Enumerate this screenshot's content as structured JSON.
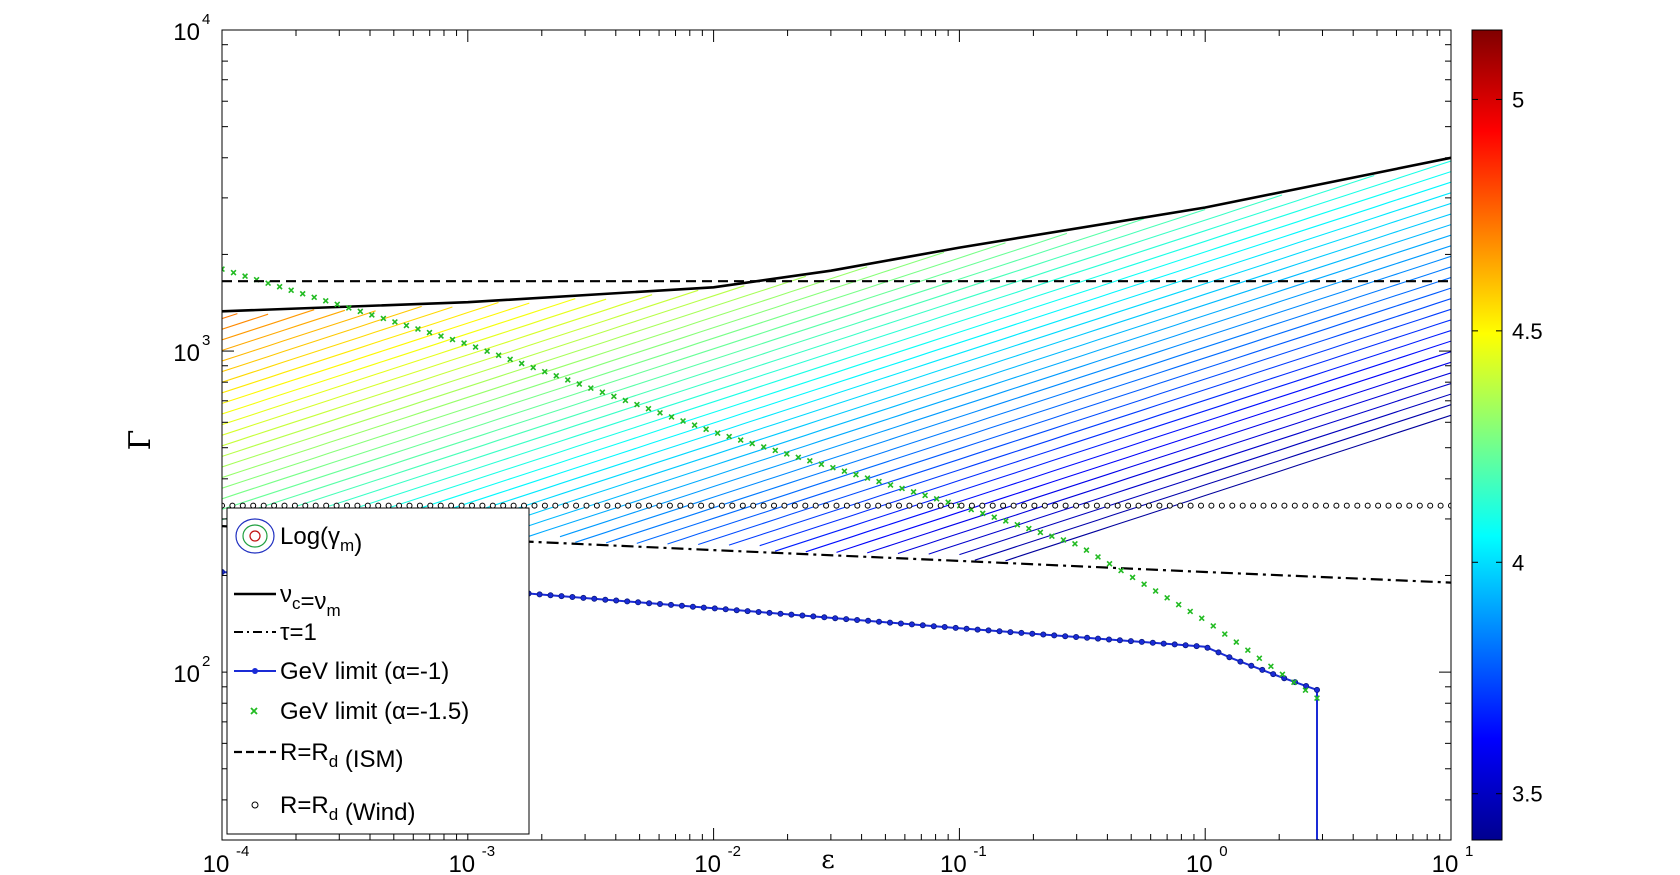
{
  "chart_data": {
    "type": "line",
    "xlabel": "ε",
    "ylabel": "Γ",
    "x_scale": "log",
    "y_scale": "log",
    "xlim": [
      0.0001,
      10
    ],
    "ylim": [
      30,
      10000
    ],
    "x_ticks": [
      {
        "value": 0.0001,
        "base": "10",
        "exp": "-4"
      },
      {
        "value": 0.001,
        "base": "10",
        "exp": "-3"
      },
      {
        "value": 0.01,
        "base": "10",
        "exp": "-2"
      },
      {
        "value": 0.1,
        "base": "10",
        "exp": "-1"
      },
      {
        "value": 1,
        "base": "10",
        "exp": "0"
      },
      {
        "value": 10,
        "base": "10",
        "exp": "1"
      }
    ],
    "y_ticks": [
      {
        "value": 100,
        "base": "10",
        "exp": "2"
      },
      {
        "value": 1000,
        "base": "10",
        "exp": "3"
      },
      {
        "value": 10000,
        "base": "10",
        "exp": "4"
      }
    ],
    "colorbar": {
      "range": [
        3.4,
        5.15
      ],
      "ticks": [
        {
          "value": 3.5,
          "label": "3.5"
        },
        {
          "value": 4,
          "label": "4"
        },
        {
          "value": 4.5,
          "label": "4.5"
        },
        {
          "value": 5,
          "label": "5"
        }
      ]
    },
    "contours": {
      "levels_min": 3.45,
      "levels_max": 5.1,
      "count": 62
    },
    "series": [
      {
        "name": "ν_c=ν_m",
        "style": "solid",
        "color": "#000000",
        "x": [
          0.0001,
          0.001,
          0.01,
          0.03,
          0.1,
          1,
          10
        ],
        "y": [
          1330,
          1420,
          1580,
          1780,
          2100,
          2800,
          4000
        ]
      },
      {
        "name": "τ=1",
        "style": "dashdot",
        "color": "#000000",
        "x": [
          0.0001,
          0.001,
          0.01,
          0.1,
          1,
          10
        ],
        "y": [
          285,
          260,
          240,
          222,
          205,
          190
        ]
      },
      {
        "name": "GeV limit (α=-1)",
        "style": "solid-dot",
        "color": "#1a2bd6",
        "x": [
          0.0001,
          0.001,
          0.01,
          0.1,
          1,
          1.3,
          2,
          2.85,
          2.85,
          2.9
        ],
        "y": [
          205,
          182,
          158,
          137,
          120,
          110,
          97,
          88,
          30,
          30
        ]
      },
      {
        "name": "GeV limit (α=-1.5)",
        "style": "cross",
        "color": "#22bb22",
        "x": [
          0.0001,
          0.001,
          0.01,
          0.1,
          0.3,
          1,
          2,
          2.85
        ],
        "y": [
          1800,
          1050,
          560,
          330,
          250,
          145,
          100,
          83
        ]
      },
      {
        "name": "R=R_d (ISM)",
        "style": "dashed",
        "color": "#000000",
        "x": [
          0.0001,
          10
        ],
        "y": [
          1650,
          1650
        ]
      },
      {
        "name": "R=R_d (Wind)",
        "style": "circle",
        "color": "#000000",
        "x": [
          0.0001,
          10
        ],
        "y": [
          330,
          330
        ]
      }
    ],
    "legend": {
      "placement": "bottom-left",
      "entries": [
        {
          "key": "contour",
          "label": "Log(γ",
          "sub": "m",
          "suffix": ")"
        },
        {
          "key": "solid",
          "label": "ν",
          "sub": "c",
          "mid": "=ν",
          "sub2": "m"
        },
        {
          "key": "dashdot",
          "label": "τ=1"
        },
        {
          "key": "solid-dot",
          "label": "GeV limit (α=-1)"
        },
        {
          "key": "cross",
          "label": "GeV limit (α=-1.5)"
        },
        {
          "key": "dashed",
          "label": "R=R",
          "sub": "d",
          "suffix": " (ISM)"
        },
        {
          "key": "circle",
          "label": "R=R",
          "sub": "d",
          "suffix": " (Wind)"
        }
      ]
    }
  }
}
